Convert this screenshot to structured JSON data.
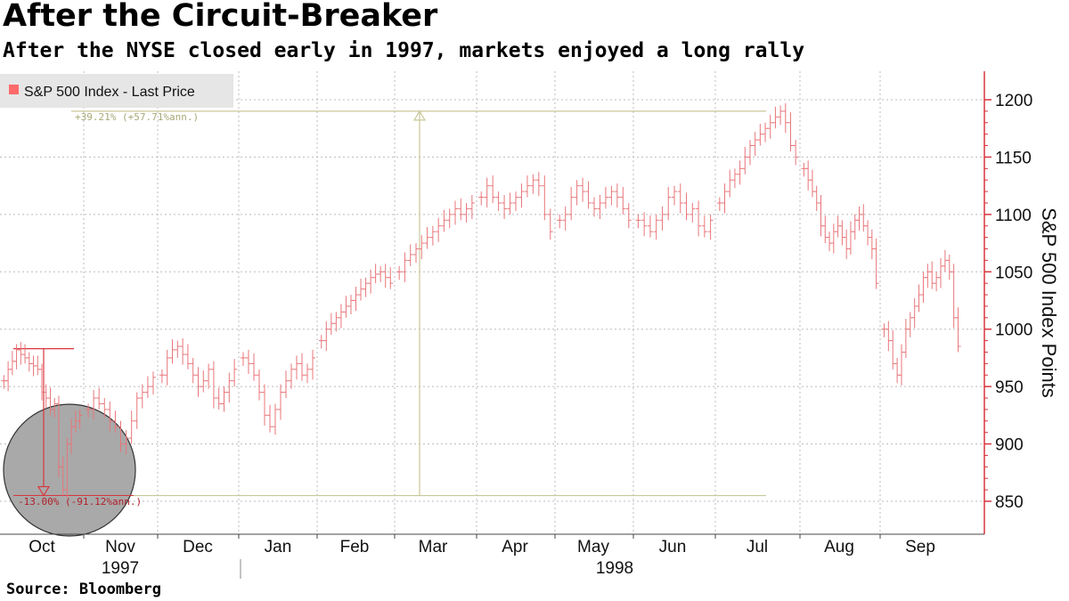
{
  "title": "After the Circuit-Breaker",
  "subtitle": "After the NYSE closed early in 1997, markets enjoyed a long rally",
  "source": "Source: Bloomberg",
  "colors": {
    "series": "#e8767a",
    "series_dark": "#d9363e",
    "axis": "#d9363e",
    "grid": "#bbbbbb",
    "annotation": "#c8c89a",
    "circle_fill": "#a9a9a9"
  },
  "chart_data": {
    "type": "bar-ohlc",
    "legend": "S&P 500 Index - Last Price",
    "ylabel": "S&P 500 Index Points",
    "ylim": [
      825,
      1215
    ],
    "y_ticks": [
      850,
      900,
      950,
      1000,
      1050,
      1100,
      1150,
      1200
    ],
    "months": [
      "Oct",
      "Nov",
      "Dec",
      "Jan",
      "Feb",
      "Mar",
      "Apr",
      "May",
      "Jun",
      "Jul",
      "Aug",
      "Sep"
    ],
    "years": [
      "1997",
      "1998"
    ],
    "max_annotation": {
      "text": "+39.21% (+57.71%ann.)",
      "level": 1190
    },
    "min_annotation": {
      "text": "-13.00% (-91.12%ann.)",
      "top_level": 983,
      "bottom_level": 855
    },
    "series_approx_daily": [
      {
        "month": "Oct 1997",
        "start": 955,
        "path": [
          955,
          965,
          972,
          982,
          978,
          975,
          970,
          968,
          965,
          945,
          940,
          930,
          935,
          880,
          860,
          900,
          915,
          920,
          925
        ]
      },
      {
        "month": "Nov 1997",
        "path": [
          930,
          940,
          935,
          930,
          920,
          915,
          900,
          905,
          920,
          940,
          945,
          950,
          958
        ]
      },
      {
        "month": "Dec 1997",
        "path": [
          960,
          975,
          982,
          985,
          978,
          970,
          960,
          950,
          955,
          965,
          940,
          935,
          945,
          955,
          965
        ]
      },
      {
        "month": "Jan 1998",
        "path": [
          975,
          970,
          960,
          945,
          925,
          915,
          930,
          945,
          955,
          965,
          970,
          960,
          965,
          975
        ]
      },
      {
        "month": "Feb 1998",
        "path": [
          990,
          1000,
          1005,
          1010,
          1015,
          1020,
          1025,
          1030,
          1035,
          1040,
          1045,
          1048,
          1050,
          1045,
          1040
        ]
      },
      {
        "month": "Mar 1998",
        "path": [
          1050,
          1060,
          1065,
          1070,
          1075,
          1080,
          1085,
          1090,
          1095,
          1100,
          1105,
          1100,
          1105,
          1110
        ]
      },
      {
        "month": "Apr 1998",
        "path": [
          1115,
          1125,
          1115,
          1110,
          1105,
          1110,
          1115,
          1120,
          1125,
          1130,
          1125,
          1100,
          1085
        ]
      },
      {
        "month": "May 1998",
        "path": [
          1095,
          1100,
          1115,
          1125,
          1120,
          1110,
          1105,
          1110,
          1115,
          1120,
          1115,
          1105,
          1095
        ]
      },
      {
        "month": "Jun 1998",
        "path": [
          1095,
          1090,
          1085,
          1095,
          1100,
          1115,
          1120,
          1110,
          1100,
          1105,
          1090,
          1085,
          1095
        ]
      },
      {
        "month": "Jul 1998",
        "path": [
          1110,
          1120,
          1130,
          1135,
          1140,
          1150,
          1160,
          1165,
          1170,
          1175,
          1180,
          1185,
          1190,
          1180,
          1160,
          1150
        ]
      },
      {
        "month": "Aug 1998",
        "path": [
          1140,
          1130,
          1120,
          1110,
          1090,
          1080,
          1075,
          1085,
          1090,
          1080,
          1070,
          1085,
          1095,
          1100,
          1090,
          1080,
          1070,
          1040
        ]
      },
      {
        "month": "Sep 1998",
        "path": [
          1000,
          990,
          970,
          960,
          980,
          1000,
          1010,
          1020,
          1030,
          1045,
          1050,
          1040,
          1045,
          1055,
          1060,
          1050,
          1010,
          985
        ]
      }
    ]
  }
}
